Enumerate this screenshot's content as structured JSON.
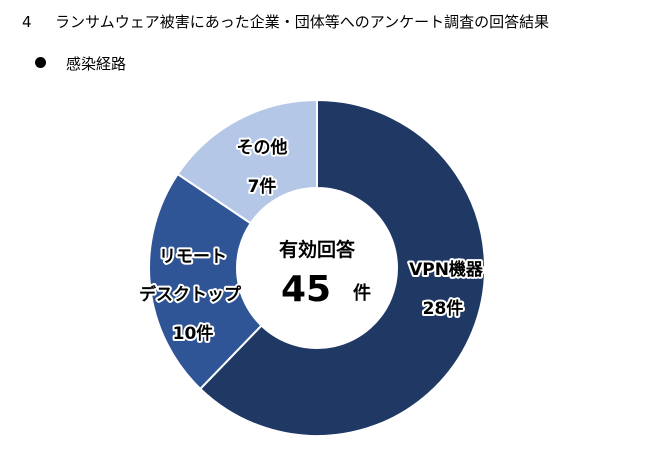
{
  "header": {
    "number": "4",
    "title": "ランサムウェア被害にあった企業・団体等へのアンケート調査の回答結果"
  },
  "section": {
    "bullet": "●",
    "label": "感染経路"
  },
  "chart_data": {
    "type": "pie",
    "subtype": "donut",
    "title": "感染経路",
    "center_label": "有効回答",
    "center_value": "45",
    "center_unit": "件",
    "total": 45,
    "categories": [
      "VPN機器",
      "リモートデスクトップ",
      "その他"
    ],
    "values": [
      28,
      10,
      7
    ],
    "value_labels": [
      "28件",
      "10件",
      "7件"
    ],
    "colors": [
      "#203864",
      "#2F5597",
      "#B4C7E7"
    ],
    "start_angle": "12 o'clock",
    "direction": "clockwise",
    "legend": "none (labels on slices)"
  },
  "labels": {
    "vpn_name": "VPN機器",
    "vpn_count": "28件",
    "rdp_line1": "リモート",
    "rdp_line2": "デスクトップ",
    "rdp_count": "10件",
    "other_name": "その他",
    "other_count": "7件"
  }
}
